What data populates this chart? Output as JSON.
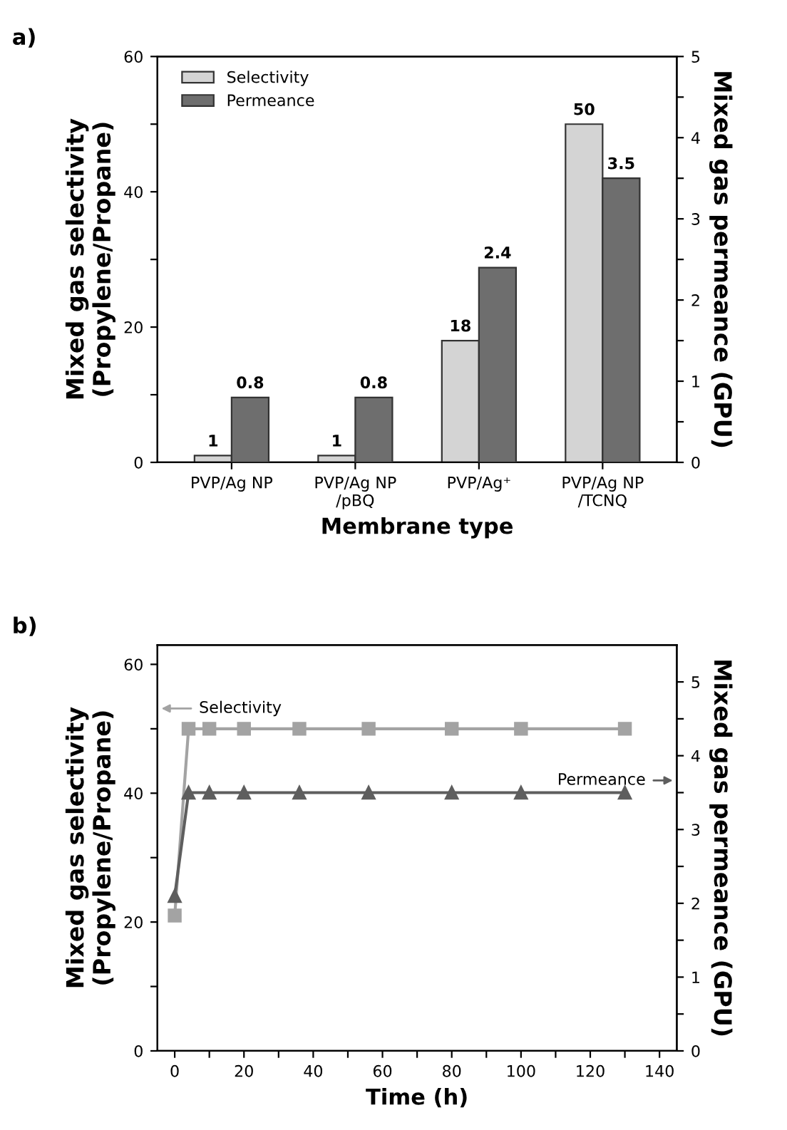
{
  "chart_data": [
    {
      "type": "bar",
      "title": "a)",
      "xlabel": "Membrane type",
      "ylabel": "Mixed gas selectivity\n(Propylene/Propane)",
      "y2label": "Mixed gas permeance (GPU)",
      "categories": [
        "PVP/Ag NP",
        "PVP/Ag NP\n/pBQ",
        "PVP/Ag⁺",
        "PVP/Ag NP\n/TCNQ"
      ],
      "series": [
        {
          "name": "Selectivity",
          "color": "#d4d4d4",
          "values": [
            1,
            1,
            18,
            50
          ]
        },
        {
          "name": "Permeance",
          "color": "#6e6e6e",
          "values": [
            0.8,
            0.8,
            2.4,
            3.5
          ],
          "axis": "y2"
        }
      ],
      "ylim": [
        0,
        60
      ],
      "yticks": [
        0,
        {
          "value": 10,
          "label": null
        },
        20,
        {
          "value": 30,
          "label": null
        },
        40,
        {
          "value": 50,
          "label": null
        },
        60
      ],
      "y2lim": [
        0,
        5
      ],
      "y2ticks": [
        0,
        {
          "value": 0.5,
          "label": null
        },
        1,
        {
          "value": 1.5,
          "label": null
        },
        2,
        {
          "value": 2.5,
          "label": null
        },
        3,
        {
          "value": 3.5,
          "label": null
        },
        4,
        {
          "value": 4.5,
          "label": null
        },
        5
      ],
      "data_labels": true,
      "legend": "top left",
      "grid": false
    },
    {
      "type": "line",
      "title": "b)",
      "xlabel": "Time (h)",
      "ylabel": "Mixed gas selectivity\n(Propylene/Propane)",
      "y2label": "Mixed gas permeance (GPU)",
      "series": [
        {
          "color": "#a3a3a3",
          "marker": "square",
          "x": [
            0,
            4,
            10,
            20,
            36,
            56,
            80,
            100,
            130
          ],
          "values": [
            21,
            50,
            50,
            50,
            50,
            50,
            50,
            50,
            50
          ]
        },
        {
          "color": "#5e5e5e",
          "marker": "triangle",
          "axis": "y2",
          "x": [
            0,
            4,
            10,
            20,
            36,
            56,
            80,
            100,
            130
          ],
          "values": [
            2.1,
            3.5,
            3.5,
            3.5,
            3.5,
            3.5,
            3.5,
            3.5,
            3.5
          ]
        }
      ],
      "xlim": [
        -5,
        145
      ],
      "xticks": [
        0,
        {
          "value": 10,
          "label": null
        },
        20,
        {
          "value": 30,
          "label": null
        },
        40,
        {
          "value": 50,
          "label": null
        },
        60,
        {
          "value": 70,
          "label": null
        },
        80,
        {
          "value": 90,
          "label": null
        },
        100,
        {
          "value": 110,
          "label": null
        },
        120,
        {
          "value": 130,
          "label": null
        },
        140
      ],
      "ylim": [
        0,
        63
      ],
      "yticks": [
        0,
        {
          "value": 10,
          "label": null
        },
        20,
        {
          "value": 30,
          "label": null
        },
        40,
        {
          "value": 50,
          "label": null
        },
        60
      ],
      "y2lim": [
        0,
        5.5
      ],
      "y2ticks": [
        0,
        {
          "value": 0.5,
          "label": null
        },
        1,
        {
          "value": 1.5,
          "label": null
        },
        2,
        {
          "value": 2.5,
          "label": null
        },
        3,
        {
          "value": 3.5,
          "label": null
        },
        4,
        {
          "value": 4.5,
          "label": null
        },
        5
      ],
      "annotations": [
        "Selectivity",
        "Permeance"
      ],
      "line_style": "solid",
      "legend": false,
      "grid": false
    }
  ]
}
